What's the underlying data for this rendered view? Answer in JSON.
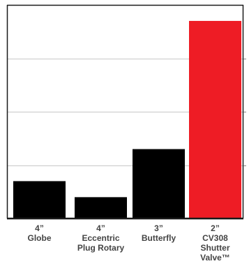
{
  "chart_data": {
    "type": "bar",
    "categories": [
      [
        "4”",
        "Globe"
      ],
      [
        "4”",
        "Eccentric",
        "Plug Rotary"
      ],
      [
        "3”",
        "Butterfly"
      ],
      [
        "2”",
        "CV308",
        "Shutter",
        "Valve™"
      ]
    ],
    "values": [
      1.4,
      0.8,
      2.6,
      7.4
    ],
    "ylim": [
      0,
      8
    ],
    "yticks": [
      0,
      2,
      4,
      6,
      8
    ],
    "grid": true,
    "legend": "none",
    "title": "",
    "xlabel": "",
    "ylabel": "",
    "colors": [
      "#000000",
      "#000000",
      "#000000",
      "#ee1c25"
    ],
    "axis_color": "#1a1a1a",
    "grid_color": "#c8c8c8"
  }
}
